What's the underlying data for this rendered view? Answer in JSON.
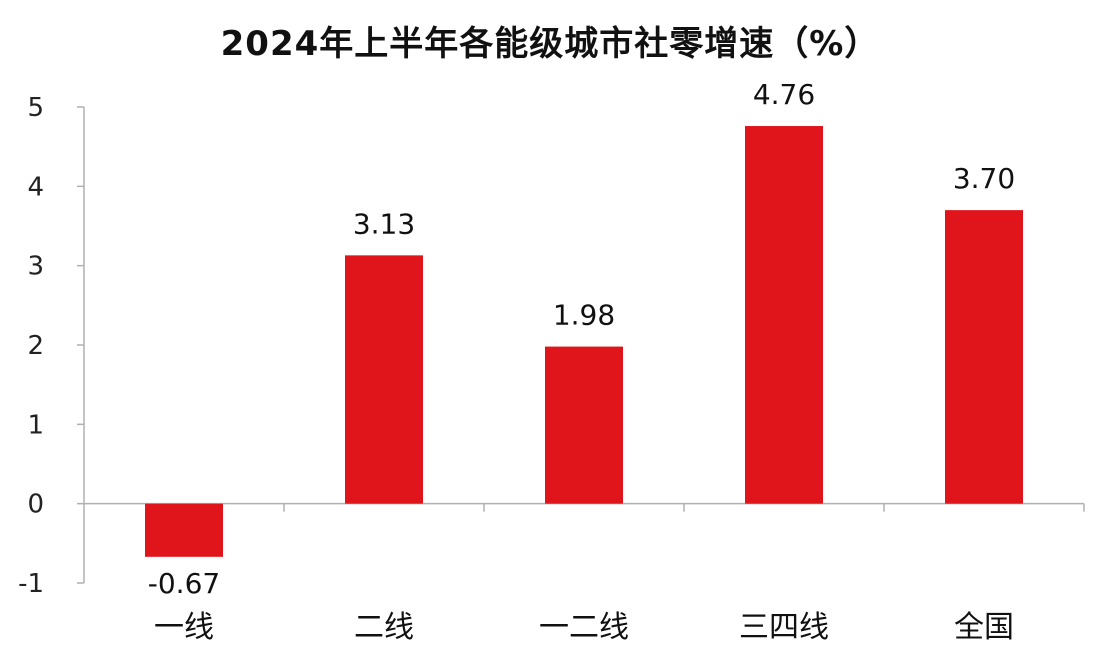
{
  "chart_data": {
    "type": "bar",
    "title": "2024年上半年各能级城市社零增速（%）",
    "categories": [
      "一线",
      "二线",
      "一二线",
      "三四线",
      "全国"
    ],
    "values": [
      -0.67,
      3.13,
      1.98,
      4.76,
      3.7
    ],
    "value_labels": [
      "-0.67",
      "3.13",
      "1.98",
      "4.76",
      "3.70"
    ],
    "yticks": [
      -1,
      0,
      1,
      2,
      3,
      4,
      5
    ],
    "ylim": [
      -1,
      5
    ],
    "xlabel": "",
    "ylabel": "",
    "grid": false,
    "legend": "none",
    "bar_color": "#e0141b",
    "axis_color": "#b0b0b0"
  }
}
